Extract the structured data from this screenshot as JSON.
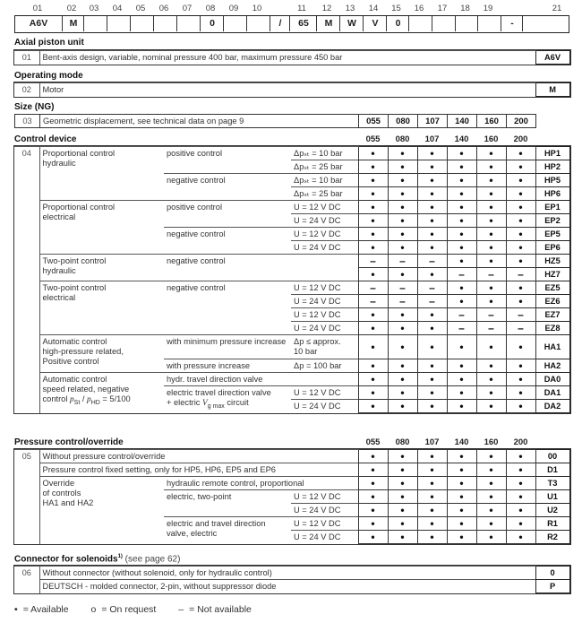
{
  "type_code": {
    "positions": [
      "01",
      "02",
      "03",
      "04",
      "05",
      "06",
      "07",
      "08",
      "09",
      "10",
      "11",
      "12",
      "13",
      "14",
      "15",
      "16",
      "17",
      "18",
      "19",
      "20",
      "21"
    ],
    "values": [
      "A6V",
      "M",
      "",
      "",
      "",
      "",
      "",
      "0",
      "",
      "",
      "/",
      "65",
      "M",
      "W",
      "V",
      "0",
      "",
      "",
      "",
      "",
      "-",
      ""
    ]
  },
  "axial": {
    "title": "Axial piston unit",
    "num": "01",
    "desc": "Bent-axis design, variable, nominal pressure 400 bar, maximum pressure 450 bar",
    "code": "A6V"
  },
  "operating": {
    "title": "Operating mode",
    "num": "02",
    "desc": "Motor",
    "code": "M"
  },
  "size": {
    "title": "Size (NG)",
    "num": "03",
    "desc": "Geometric displacement, see technical data on page 9",
    "sizes": [
      "055",
      "080",
      "107",
      "140",
      "160",
      "200"
    ]
  },
  "control": {
    "title": "Control device",
    "num": "04",
    "sizes": [
      "055",
      "080",
      "107",
      "140",
      "160",
      "200"
    ],
    "groups": [
      "Proportional control\nhydraulic",
      "Proportional control\nelectrical",
      "Two-point control\nhydraulic",
      "Two-point control\nelectrical",
      "Automatic control\nhigh-pressure related,\nPositive control",
      "Automatic control\nspeed related, negative\ncontrol "
    ],
    "da_ratio": {
      "p1": "p",
      "s1": "St",
      "sep": " / ",
      "p2": "p",
      "s2": "HD",
      "tail": " = 5/100"
    },
    "labels": {
      "positive": "positive control",
      "negative": "negative control",
      "min_increase": "with minimum pressure increase",
      "increase": "with pressure increase",
      "hydr_valve": "hydr. travel direction valve",
      "elec_valve": "electric travel direction valve\n+ electric ",
      "vg": "V",
      "vg_sub": "g max",
      "circuit": " circuit"
    },
    "rows": [
      {
        "cond": "Δpₛₜ = 10 bar",
        "avail": [
          "•",
          "•",
          "•",
          "•",
          "•",
          "•"
        ],
        "code": "HP1"
      },
      {
        "cond": "Δpₛₜ = 25 bar",
        "avail": [
          "•",
          "•",
          "•",
          "•",
          "•",
          "•"
        ],
        "code": "HP2"
      },
      {
        "cond": "Δpₛₜ = 10 bar",
        "avail": [
          "•",
          "•",
          "•",
          "•",
          "•",
          "•"
        ],
        "code": "HP5"
      },
      {
        "cond": "Δpₛₜ = 25 bar",
        "avail": [
          "•",
          "•",
          "•",
          "•",
          "•",
          "•"
        ],
        "code": "HP6"
      },
      {
        "cond": "U = 12 V DC",
        "avail": [
          "•",
          "•",
          "•",
          "•",
          "•",
          "•"
        ],
        "code": "EP1"
      },
      {
        "cond": "U = 24 V DC",
        "avail": [
          "•",
          "•",
          "•",
          "•",
          "•",
          "•"
        ],
        "code": "EP2"
      },
      {
        "cond": "U = 12 V DC",
        "avail": [
          "•",
          "•",
          "•",
          "•",
          "•",
          "•"
        ],
        "code": "EP5"
      },
      {
        "cond": "U = 24 V DC",
        "avail": [
          "•",
          "•",
          "•",
          "•",
          "•",
          "•"
        ],
        "code": "EP6"
      },
      {
        "cond": "",
        "avail": [
          "–",
          "–",
          "–",
          "•",
          "•",
          "•"
        ],
        "code": "HZ5"
      },
      {
        "cond": "",
        "avail": [
          "•",
          "•",
          "•",
          "–",
          "–",
          "–"
        ],
        "code": "HZ7"
      },
      {
        "cond": "U = 12 V DC",
        "avail": [
          "–",
          "–",
          "–",
          "•",
          "•",
          "•"
        ],
        "code": "EZ5"
      },
      {
        "cond": "U = 24 V DC",
        "avail": [
          "–",
          "–",
          "–",
          "•",
          "•",
          "•"
        ],
        "code": "EZ6"
      },
      {
        "cond": "U = 12 V DC",
        "avail": [
          "•",
          "•",
          "•",
          "–",
          "–",
          "–"
        ],
        "code": "EZ7"
      },
      {
        "cond": "U = 24 V DC",
        "avail": [
          "•",
          "•",
          "•",
          "–",
          "–",
          "–"
        ],
        "code": "EZ8"
      },
      {
        "cond": "Δp ≤ approx.\n10 bar",
        "avail": [
          "•",
          "•",
          "•",
          "•",
          "•",
          "•"
        ],
        "code": "HA1"
      },
      {
        "cond": "Δp = 100 bar",
        "avail": [
          "•",
          "•",
          "•",
          "•",
          "•",
          "•"
        ],
        "code": "HA2"
      },
      {
        "cond": "",
        "avail": [
          "•",
          "•",
          "•",
          "•",
          "•",
          "•"
        ],
        "code": "DA0"
      },
      {
        "cond": "U = 12 V DC",
        "avail": [
          "•",
          "•",
          "•",
          "•",
          "•",
          "•"
        ],
        "code": "DA1"
      },
      {
        "cond": "U = 24 V DC",
        "avail": [
          "•",
          "•",
          "•",
          "•",
          "•",
          "•"
        ],
        "code": "DA2"
      }
    ]
  },
  "pressure": {
    "title": "Pressure control/override",
    "num": "05",
    "sizes": [
      "055",
      "080",
      "107",
      "140",
      "160",
      "200"
    ],
    "texts": {
      "without": "Without pressure control/override",
      "fixed": "Pressure control fixed setting, only for HP5, HP6, EP5 and EP6",
      "override": "Override\nof controls\nHA1 and HA2",
      "hydraulic": "hydraulic remote control, proportional",
      "two_point": "electric, two-point",
      "travel": "electric and travel direction\nvalve, electric"
    },
    "rows": [
      {
        "cond": "",
        "avail": [
          "•",
          "•",
          "•",
          "•",
          "•",
          "•"
        ],
        "code": "00"
      },
      {
        "cond": "",
        "avail": [
          "•",
          "•",
          "•",
          "•",
          "•",
          "•"
        ],
        "code": "D1"
      },
      {
        "cond": "",
        "avail": [
          "•",
          "•",
          "•",
          "•",
          "•",
          "•"
        ],
        "code": "T3"
      },
      {
        "cond": "U = 12 V DC",
        "avail": [
          "•",
          "•",
          "•",
          "•",
          "•",
          "•"
        ],
        "code": "U1"
      },
      {
        "cond": "U = 24 V DC",
        "avail": [
          "•",
          "•",
          "•",
          "•",
          "•",
          "•"
        ],
        "code": "U2"
      },
      {
        "cond": "U = 12 V DC",
        "avail": [
          "•",
          "•",
          "•",
          "•",
          "•",
          "•"
        ],
        "code": "R1"
      },
      {
        "cond": "U = 24 V DC",
        "avail": [
          "•",
          "•",
          "•",
          "•",
          "•",
          "•"
        ],
        "code": "R2"
      }
    ]
  },
  "connector": {
    "title": "Connector for solenoids",
    "footnote": "1)",
    "note": " (see page 62)",
    "num": "06",
    "rows": [
      {
        "desc": "Without connector (without solenoid, only for hydraulic control)",
        "code": "0"
      },
      {
        "desc": "DEUTSCH - molded connector, 2-pin, without suppressor diode",
        "code": "P"
      }
    ]
  },
  "legend": {
    "available_sym": "•",
    "available": "= Available",
    "request_sym": "o",
    "request": "= On request",
    "na_sym": "–",
    "na": "= Not available"
  }
}
